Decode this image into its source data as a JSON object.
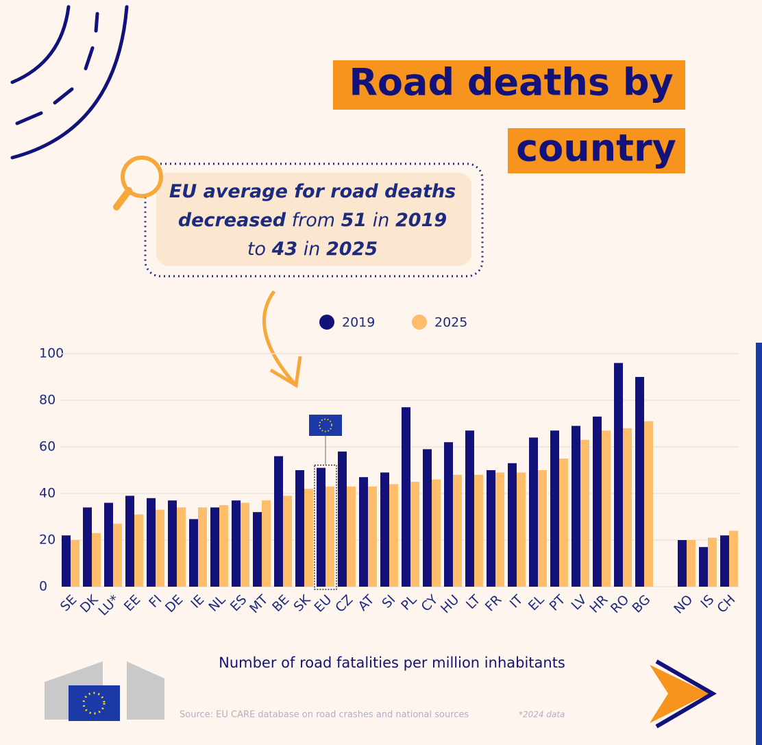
{
  "chart_data": {
    "type": "bar",
    "title_lines": [
      "Road deaths by",
      "country"
    ],
    "callout": [
      [
        {
          "text": "EU average for road deaths",
          "bold": true
        }
      ],
      [
        {
          "text": "decreased",
          "bold": true
        },
        {
          "text": " from ",
          "bold": false
        },
        {
          "text": "51",
          "bold": true
        },
        {
          "text": " in ",
          "bold": false
        },
        {
          "text": "2019",
          "bold": true
        }
      ],
      [
        {
          "text": "to ",
          "bold": false
        },
        {
          "text": "43",
          "bold": true
        },
        {
          "text": " in ",
          "bold": false
        },
        {
          "text": "2025",
          "bold": true
        }
      ]
    ],
    "x_label": "Number of road fatalities per million inhabitants",
    "source": "Source: EU CARE database on road crashes and national sources",
    "footnote": "*2024 data",
    "categories": [
      "SE",
      "DK",
      "LU*",
      "EE",
      "FI",
      "DE",
      "IE",
      "NL",
      "ES",
      "MT",
      "BE",
      "SK",
      "EU",
      "CZ",
      "AT",
      "SI",
      "PL",
      "CY",
      "HU",
      "LT",
      "FR",
      "IT",
      "EL",
      "PT",
      "LV",
      "HR",
      "RO",
      "BG",
      null,
      "NO",
      "IS",
      "CH"
    ],
    "series": [
      {
        "name": "2019",
        "color": "#12127a",
        "values": [
          22,
          34,
          36,
          39,
          38,
          37,
          29,
          34,
          37,
          32,
          56,
          50,
          51,
          58,
          47,
          49,
          77,
          59,
          62,
          67,
          50,
          53,
          64,
          67,
          69,
          73,
          96,
          90,
          null,
          20,
          17,
          22
        ]
      },
      {
        "name": "2025",
        "color": "#fdbd6b",
        "values": [
          20,
          23,
          27,
          31,
          33,
          34,
          34,
          35,
          36,
          37,
          39,
          42,
          43,
          43,
          43,
          44,
          45,
          46,
          48,
          48,
          49,
          49,
          50,
          55,
          63,
          67,
          68,
          71,
          null,
          20,
          21,
          24
        ]
      }
    ],
    "highlight": "EU",
    "ylim": [
      0,
      100
    ],
    "yticks": [
      0,
      20,
      40,
      60,
      80,
      100
    ],
    "grid": true
  }
}
